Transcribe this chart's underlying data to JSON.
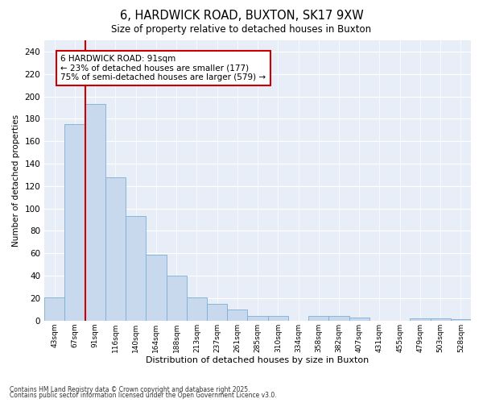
{
  "title1": "6, HARDWICK ROAD, BUXTON, SK17 9XW",
  "title2": "Size of property relative to detached houses in Buxton",
  "xlabel": "Distribution of detached houses by size in Buxton",
  "ylabel": "Number of detached properties",
  "categories": [
    "43sqm",
    "67sqm",
    "91sqm",
    "116sqm",
    "140sqm",
    "164sqm",
    "188sqm",
    "213sqm",
    "237sqm",
    "261sqm",
    "285sqm",
    "310sqm",
    "334sqm",
    "358sqm",
    "382sqm",
    "407sqm",
    "431sqm",
    "455sqm",
    "479sqm",
    "503sqm",
    "528sqm"
  ],
  "values": [
    21,
    175,
    193,
    128,
    93,
    59,
    40,
    21,
    15,
    10,
    4,
    4,
    0,
    4,
    4,
    3,
    0,
    0,
    2,
    2,
    1
  ],
  "bar_color": "#c8d9ee",
  "bar_edge_color": "#7bafd4",
  "vline_x": 2,
  "vline_color": "#cc0000",
  "annotation_line1": "6 HARDWICK ROAD: 91sqm",
  "annotation_line2": "← 23% of detached houses are smaller (177)",
  "annotation_line3": "75% of semi-detached houses are larger (579) →",
  "annotation_box_color": "#cc0000",
  "ylim": [
    0,
    250
  ],
  "yticks": [
    0,
    20,
    40,
    60,
    80,
    100,
    120,
    140,
    160,
    180,
    200,
    220,
    240
  ],
  "bg_color": "#e8eef7",
  "grid_color": "#ffffff",
  "footer1": "Contains HM Land Registry data © Crown copyright and database right 2025.",
  "footer2": "Contains public sector information licensed under the Open Government Licence v3.0."
}
